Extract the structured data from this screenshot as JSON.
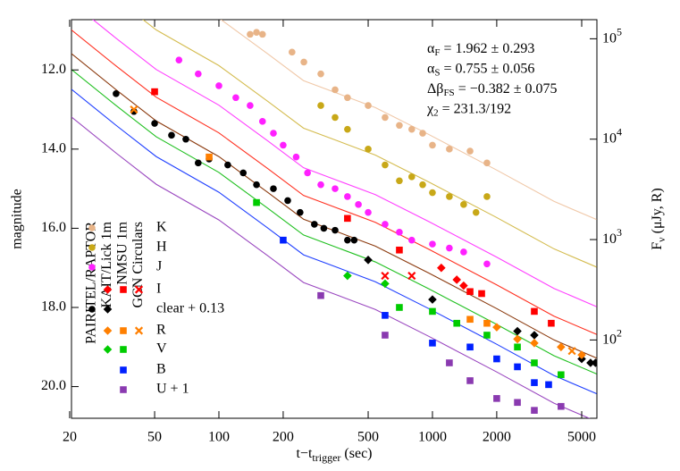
{
  "chart_data": {
    "type": "scatter",
    "x_label": {
      "main": "t−t",
      "sub": "trigger",
      "tail": " (sec)"
    },
    "y_label": "magnitude",
    "y2_label": {
      "main": "F",
      "sub": "ν",
      "tail": " (μJy, R)"
    },
    "log_x": true,
    "xlim": [
      20.4,
      5890
    ],
    "xticks": [
      20,
      50,
      100,
      200,
      500,
      1000,
      2000,
      5000
    ],
    "ylim": [
      20.8,
      10.73
    ],
    "yticks": [
      {
        "value": 12,
        "label": "12.0"
      },
      {
        "value": 14,
        "label": "14.0"
      },
      {
        "value": 16,
        "label": "16.0"
      },
      {
        "value": 18,
        "label": "18.0"
      },
      {
        "value": 20,
        "label": "20.0"
      }
    ],
    "y2lim": [
      16.6,
      155000
    ],
    "y2_log": true,
    "y2ticks": [
      {
        "value": 100,
        "label": "10",
        "sup": "2"
      },
      {
        "value": 1000,
        "label": "10",
        "sup": "3"
      },
      {
        "value": 10000,
        "label": "10",
        "sup": "4"
      },
      {
        "value": 100000,
        "label": "10",
        "sup": "5"
      }
    ],
    "annotations": [
      {
        "symbol": "α",
        "sub": "F",
        "text": " = 1.962 ± 0.293"
      },
      {
        "symbol": "α",
        "sub": "S",
        "text": " = 0.755 ± 0.056"
      },
      {
        "symbol": "Δβ",
        "sub": "FS",
        "text": " = −0.382 ± 0.075"
      },
      {
        "symbol": "χ",
        "sub": "2",
        "text": " = 231.3/192"
      }
    ],
    "instruments": [
      {
        "name": "PAIRITEL/RAPTOR",
        "marker": "circle"
      },
      {
        "name": "KAIT/Lick 1m",
        "marker": "diamond"
      },
      {
        "name": "NMSU 1m",
        "marker": "square"
      },
      {
        "name": "GCN Circulars",
        "marker": "cross"
      }
    ],
    "series": [
      {
        "name": "K",
        "color": "#e8b488",
        "line_color": "#f0c8a8",
        "groups": [
          {
            "marker": "circle",
            "x": [
              140,
              150,
              160,
              220,
              250,
              300,
              350,
              400,
              500,
              600,
              700,
              800,
              900,
              1000,
              1200,
              1500,
              1800
            ],
            "values": [
              11.1,
              11.05,
              11.1,
              11.55,
              11.8,
              12.1,
              12.5,
              12.7,
              12.9,
              13.2,
              13.4,
              13.5,
              13.6,
              13.9,
              14.0,
              14.05,
              14.35
            ]
          }
        ],
        "fit": {
          "x": [
            20.4,
            33,
            50.9,
            100,
            170,
            249,
            367,
            540,
            961,
            2000,
            3707,
            5870
          ],
          "values": [
            8.09,
            9.0,
            9.79,
            10.69,
            11.6,
            12.27,
            12.61,
            12.95,
            13.63,
            14.53,
            15.32,
            15.78
          ]
        }
      },
      {
        "name": "H",
        "color": "#c8a818",
        "line_color": "#d4bc50",
        "groups": [
          {
            "marker": "circle",
            "x": [
              300,
              350,
              400,
              500,
              600,
              700,
              800,
              900,
              1000,
              1200,
              1400,
              1600,
              1800
            ],
            "values": [
              12.9,
              13.2,
              13.5,
              14.0,
              14.4,
              14.8,
              14.7,
              14.9,
              15.1,
              15.2,
              15.4,
              15.6,
              15.2
            ]
          }
        ],
        "fit": {
          "x": [
            20.4,
            33,
            50.9,
            100,
            170,
            249,
            367,
            540,
            961,
            2000,
            3707,
            5870
          ],
          "values": [
            9.29,
            10.2,
            10.99,
            11.89,
            12.8,
            13.47,
            13.81,
            14.15,
            14.83,
            15.73,
            16.52,
            16.98
          ]
        }
      },
      {
        "name": "J",
        "color": "#ff20ff",
        "line_color": "#ff40ff",
        "groups": [
          {
            "marker": "circle",
            "x": [
              65,
              80,
              100,
              120,
              140,
              160,
              180,
              200,
              230,
              260,
              300,
              350,
              400,
              450,
              500,
              600,
              700,
              800,
              1000,
              1200,
              1400,
              1800
            ],
            "values": [
              11.75,
              12.1,
              12.4,
              12.7,
              12.9,
              13.3,
              13.6,
              13.9,
              14.2,
              14.6,
              14.9,
              15.0,
              15.2,
              15.4,
              15.6,
              15.9,
              16.1,
              16.3,
              16.4,
              16.5,
              16.6,
              16.9
            ]
          }
        ],
        "fit": {
          "x": [
            20.4,
            33,
            50.9,
            100,
            170,
            249,
            367,
            540,
            961,
            2000,
            3707,
            5870
          ],
          "values": [
            10.29,
            11.2,
            11.99,
            12.89,
            13.8,
            14.47,
            14.81,
            15.15,
            15.83,
            16.73,
            17.52,
            17.98
          ]
        }
      },
      {
        "name": "I",
        "color": "#ff0000",
        "line_color": "#ff3020",
        "groups": [
          {
            "marker": "diamond",
            "x": [
              1100,
              1300,
              1400
            ],
            "values": [
              17.0,
              17.3,
              17.45
            ]
          },
          {
            "marker": "square",
            "x": [
              50,
              400,
              700,
              1500,
              1700,
              3000,
              3600
            ],
            "values": [
              12.55,
              15.75,
              16.55,
              17.6,
              17.65,
              18.1,
              18.4
            ]
          },
          {
            "marker": "cross",
            "x": [
              600,
              800
            ],
            "values": [
              17.2,
              17.2
            ]
          }
        ],
        "fit": {
          "x": [
            20.4,
            33,
            50.9,
            100,
            170,
            249,
            367,
            540,
            961,
            2000,
            3707,
            5870
          ],
          "values": [
            10.99,
            11.9,
            12.69,
            13.59,
            14.5,
            15.17,
            15.51,
            15.85,
            16.53,
            17.43,
            18.22,
            18.68
          ]
        }
      },
      {
        "name": "clear + 0.13",
        "color": "#000000",
        "line_color": "#8b3a0e",
        "groups": [
          {
            "marker": "circle",
            "x": [
              33,
              40,
              50,
              60,
              70,
              80,
              90,
              110,
              130,
              150,
              180,
              210,
              240,
              280,
              310,
              350,
              400,
              430
            ],
            "values": [
              12.6,
              13.05,
              13.35,
              13.65,
              13.75,
              14.35,
              14.25,
              14.4,
              14.6,
              14.9,
              15.0,
              15.3,
              15.6,
              15.9,
              16.0,
              16.05,
              16.3,
              16.3
            ]
          },
          {
            "marker": "diamond",
            "x": [
              500,
              1000,
              2500,
              3000,
              5000,
              5500,
              5800
            ],
            "values": [
              16.8,
              17.8,
              18.6,
              18.7,
              19.3,
              19.4,
              19.4
            ]
          }
        ],
        "fit": {
          "x": [
            20.4,
            33,
            50.9,
            100,
            170,
            249,
            367,
            540,
            961,
            2000,
            3707,
            5870
          ],
          "values": [
            11.59,
            12.5,
            13.29,
            14.19,
            15.1,
            15.77,
            16.11,
            16.45,
            17.13,
            18.03,
            18.82,
            19.28
          ]
        }
      },
      {
        "name": "R",
        "color": "#ff7f00",
        "line_color": "#ff7f00",
        "groups": [
          {
            "marker": "diamond",
            "x": [
              2000,
              2500,
              3000,
              4000,
              5000
            ],
            "values": [
              18.5,
              18.8,
              18.9,
              19.0,
              19.2
            ]
          },
          {
            "marker": "square",
            "x": [
              90,
              1500,
              1800
            ],
            "values": [
              14.2,
              18.3,
              18.4
            ]
          },
          {
            "marker": "cross",
            "x": [
              40,
              4500
            ],
            "values": [
              13.0,
              19.1
            ]
          }
        ]
      },
      {
        "name": "V",
        "color": "#00cc00",
        "line_color": "#20c020",
        "groups": [
          {
            "marker": "diamond",
            "x": [
              400,
              600
            ],
            "values": [
              17.2,
              17.4
            ]
          },
          {
            "marker": "square",
            "x": [
              150,
              700,
              1000,
              1300,
              1800,
              2500,
              3000,
              4000
            ],
            "values": [
              15.35,
              18.0,
              18.1,
              18.4,
              18.7,
              19.0,
              19.4,
              19.7
            ]
          }
        ],
        "fit": {
          "x": [
            20.4,
            33,
            50.9,
            100,
            170,
            249,
            367,
            540,
            961,
            2000,
            3707,
            5870
          ],
          "values": [
            11.99,
            12.9,
            13.69,
            14.59,
            15.5,
            16.17,
            16.51,
            16.85,
            17.53,
            18.43,
            19.22,
            19.68
          ]
        }
      },
      {
        "name": "B",
        "color": "#0020ff",
        "line_color": "#2040ff",
        "groups": [
          {
            "marker": "square",
            "x": [
              200,
              600,
              1000,
              1500,
              2000,
              2500,
              3000,
              3500
            ],
            "values": [
              16.3,
              18.2,
              18.9,
              19.0,
              19.3,
              19.5,
              19.9,
              19.95
            ]
          }
        ],
        "fit": {
          "x": [
            20.4,
            33,
            50.9,
            100,
            170,
            249,
            367,
            540,
            961,
            2000,
            3707,
            5870
          ],
          "values": [
            12.49,
            13.4,
            14.19,
            15.09,
            16.0,
            16.67,
            17.01,
            17.35,
            18.03,
            18.93,
            19.72,
            20.18
          ]
        }
      },
      {
        "name": "U + 1",
        "color": "#8a3ab0",
        "line_color": "#9a48c0",
        "groups": [
          {
            "marker": "square",
            "x": [
              300,
              600,
              1200,
              1500,
              2000,
              2500,
              3000,
              4000
            ],
            "values": [
              17.7,
              18.7,
              19.4,
              19.85,
              20.3,
              20.4,
              20.6,
              20.5
            ]
          }
        ],
        "fit": {
          "x": [
            20.4,
            33,
            50.9,
            100,
            170,
            249,
            367,
            540,
            961,
            2000,
            3707,
            5870
          ],
          "values": [
            13.19,
            14.1,
            14.89,
            15.79,
            16.7,
            17.37,
            17.71,
            18.05,
            18.73,
            19.63,
            20.42,
            20.88
          ]
        }
      }
    ]
  }
}
